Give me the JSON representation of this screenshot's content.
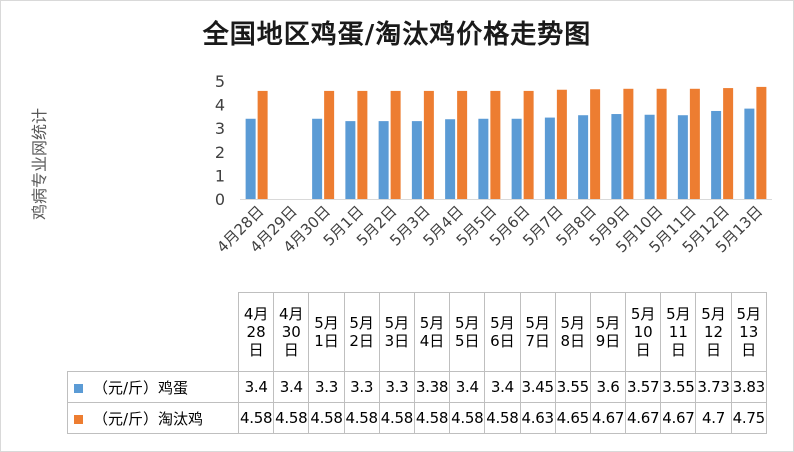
{
  "chart_data": {
    "type": "bar",
    "title": "全国地区鸡蛋/淘汰鸡价格走势图",
    "ylabel": "鸡病专业网统计",
    "ylim": [
      0,
      5
    ],
    "yticks": [
      "0",
      "1",
      "2",
      "3",
      "4",
      "5"
    ],
    "grid": false,
    "categories": [
      "4月28日",
      "4月29日",
      "4月30日",
      "5月1日",
      "5月2日",
      "5月3日",
      "5月4日",
      "5月5日",
      "5月6日",
      "5月7日",
      "5月8日",
      "5月9日",
      "5月10日",
      "5月11日",
      "5月12日",
      "5月13日"
    ],
    "series": [
      {
        "name": "（元/斤）鸡蛋",
        "color": "#5b9bd5",
        "values": [
          3.4,
          null,
          3.4,
          3.3,
          3.3,
          3.3,
          3.38,
          3.4,
          3.4,
          3.45,
          3.55,
          3.6,
          3.57,
          3.55,
          3.73,
          3.83
        ]
      },
      {
        "name": "（元/斤）淘汰鸡",
        "color": "#ed7d31",
        "values": [
          4.58,
          null,
          4.58,
          4.58,
          4.58,
          4.58,
          4.58,
          4.58,
          4.58,
          4.63,
          4.65,
          4.67,
          4.67,
          4.67,
          4.7,
          4.75
        ]
      }
    ],
    "table": {
      "headers": [
        "4月\n28\n日",
        "4月\n30\n日",
        "5月\n1日",
        "5月\n2日",
        "5月\n3日",
        "5月\n4日",
        "5月\n5日",
        "5月\n6日",
        "5月\n7日",
        "5月\n8日",
        "5月\n9日",
        "5月\n10\n日",
        "5月\n11\n日",
        "5月\n12\n日",
        "5月\n13\n日"
      ],
      "rows": [
        {
          "label": "（元/斤）鸡蛋",
          "color": "#5b9bd5",
          "values": [
            "3.4",
            "3.4",
            "3.3",
            "3.3",
            "3.3",
            "3.38",
            "3.4",
            "3.4",
            "3.45",
            "3.55",
            "3.6",
            "3.57",
            "3.55",
            "3.73",
            "3.83"
          ]
        },
        {
          "label": "（元/斤）淘汰鸡",
          "color": "#ed7d31",
          "values": [
            "4.58",
            "4.58",
            "4.58",
            "4.58",
            "4.58",
            "4.58",
            "4.58",
            "4.58",
            "4.63",
            "4.65",
            "4.67",
            "4.67",
            "4.67",
            "4.7",
            "4.75"
          ]
        }
      ]
    }
  }
}
